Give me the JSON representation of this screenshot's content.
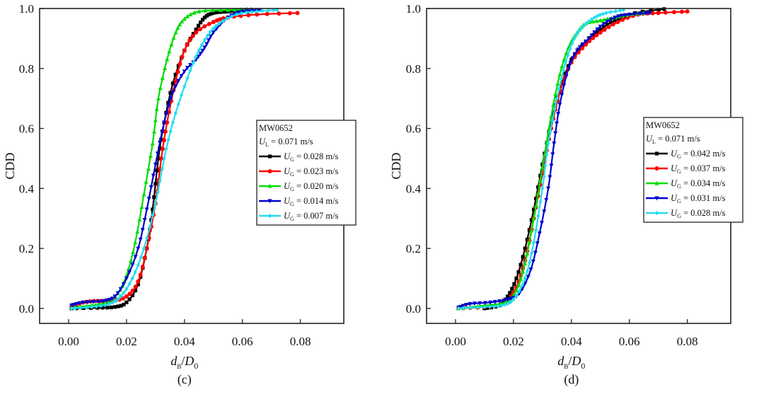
{
  "chart_data": [
    {
      "type": "line",
      "panel_label": "(c)",
      "xlabel": "d_B/D_0",
      "ylabel": "CDD",
      "xlim": [
        -0.01,
        0.095
      ],
      "ylim": [
        -0.05,
        1.0
      ],
      "xticks": [
        0.0,
        0.02,
        0.04,
        0.06,
        0.08
      ],
      "xtick_labels": [
        "0.00",
        "0.02",
        "0.04",
        "0.06",
        "0.08"
      ],
      "yticks": [
        0.0,
        0.2,
        0.4,
        0.6,
        0.8,
        1.0
      ],
      "ytick_labels": [
        "0.0",
        "0.2",
        "0.4",
        "0.6",
        "0.8",
        "1.0"
      ],
      "grid": false,
      "legend": {
        "placement": "center-right",
        "header_lines": [
          "MW0652",
          "U_L = 0.071 m/s"
        ],
        "header_line1": "MW0652",
        "header_var": "U",
        "header_sub": "L",
        "header_rest": " = 0.071 m/s"
      },
      "series": [
        {
          "name": "U_G = 0.028 m/s",
          "var": "U",
          "sub": "G",
          "label_rest": " = 0.028 m/s",
          "color": "#000000",
          "marker": "square",
          "x": [
            0.001,
            0.01,
            0.016,
            0.02,
            0.024,
            0.027,
            0.029,
            0.031,
            0.033,
            0.036,
            0.04,
            0.044,
            0.047,
            0.05,
            0.055,
            0.06
          ],
          "y": [
            0.0,
            0.002,
            0.005,
            0.02,
            0.08,
            0.2,
            0.33,
            0.5,
            0.62,
            0.75,
            0.86,
            0.93,
            0.97,
            0.985,
            0.99,
            0.995
          ]
        },
        {
          "name": "U_G = 0.023 m/s",
          "var": "U",
          "sub": "G",
          "label_rest": " = 0.023 m/s",
          "color": "#ff0000",
          "marker": "circle",
          "x": [
            0.001,
            0.005,
            0.01,
            0.015,
            0.02,
            0.024,
            0.027,
            0.03,
            0.032,
            0.034,
            0.037,
            0.04,
            0.044,
            0.05,
            0.055,
            0.065,
            0.079
          ],
          "y": [
            0.005,
            0.02,
            0.025,
            0.025,
            0.04,
            0.09,
            0.2,
            0.35,
            0.5,
            0.62,
            0.76,
            0.86,
            0.92,
            0.955,
            0.97,
            0.98,
            0.985
          ]
        },
        {
          "name": "U_G = 0.020 m/s",
          "var": "U",
          "sub": "G",
          "label_rest": " = 0.020 m/s",
          "color": "#00dd00",
          "marker": "triangle-up",
          "x": [
            0.001,
            0.008,
            0.013,
            0.017,
            0.02,
            0.023,
            0.026,
            0.029,
            0.031,
            0.034,
            0.037,
            0.04,
            0.045,
            0.055,
            0.063
          ],
          "y": [
            0.003,
            0.01,
            0.02,
            0.05,
            0.11,
            0.22,
            0.38,
            0.55,
            0.7,
            0.83,
            0.92,
            0.965,
            0.99,
            0.995,
            0.998
          ]
        },
        {
          "name": "U_G = 0.014 m/s",
          "var": "U",
          "sub": "G",
          "label_rest": " = 0.014 m/s",
          "color": "#0000cc",
          "marker": "triangle-down",
          "x": [
            0.001,
            0.005,
            0.012,
            0.016,
            0.02,
            0.024,
            0.027,
            0.03,
            0.033,
            0.036,
            0.04,
            0.044,
            0.047,
            0.05,
            0.055,
            0.06,
            0.066
          ],
          "y": [
            0.01,
            0.02,
            0.025,
            0.04,
            0.1,
            0.2,
            0.33,
            0.48,
            0.62,
            0.72,
            0.79,
            0.83,
            0.87,
            0.92,
            0.97,
            0.99,
            0.995
          ]
        },
        {
          "name": "U_G = 0.007 m/s",
          "var": "U",
          "sub": "G",
          "label_rest": " = 0.007 m/s",
          "color": "#22ddee",
          "marker": "diamond",
          "x": [
            0.001,
            0.008,
            0.014,
            0.018,
            0.022,
            0.026,
            0.03,
            0.033,
            0.036,
            0.04,
            0.044,
            0.048,
            0.052,
            0.058,
            0.065,
            0.072
          ],
          "y": [
            0.0,
            0.005,
            0.015,
            0.04,
            0.1,
            0.2,
            0.35,
            0.5,
            0.62,
            0.74,
            0.84,
            0.91,
            0.95,
            0.98,
            0.99,
            0.995
          ]
        }
      ]
    },
    {
      "type": "line",
      "panel_label": "(d)",
      "xlabel": "d_B/D_0",
      "ylabel": "CDD",
      "xlim": [
        -0.01,
        0.095
      ],
      "ylim": [
        -0.05,
        1.0
      ],
      "xticks": [
        0.0,
        0.02,
        0.04,
        0.06,
        0.08
      ],
      "xtick_labels": [
        "0.00",
        "0.02",
        "0.04",
        "0.06",
        "0.08"
      ],
      "yticks": [
        0.0,
        0.2,
        0.4,
        0.6,
        0.8,
        1.0
      ],
      "ytick_labels": [
        "0.0",
        "0.2",
        "0.4",
        "0.6",
        "0.8",
        "1.0"
      ],
      "grid": false,
      "legend": {
        "placement": "center-right",
        "header_lines": [
          "MW0652",
          "U_L = 0.071 m/s"
        ],
        "header_line1": "MW0652",
        "header_var": "U",
        "header_sub": "L",
        "header_rest": " = 0.071 m/s"
      },
      "series": [
        {
          "name": "U_G = 0.042 m/s",
          "var": "U",
          "sub": "G",
          "label_rest": " = 0.042 m/s",
          "color": "#000000",
          "marker": "square",
          "x": [
            0.01,
            0.015,
            0.018,
            0.021,
            0.024,
            0.027,
            0.03,
            0.033,
            0.036,
            0.04,
            0.045,
            0.05,
            0.055,
            0.062,
            0.072
          ],
          "y": [
            0.0,
            0.01,
            0.04,
            0.1,
            0.2,
            0.33,
            0.48,
            0.62,
            0.73,
            0.83,
            0.89,
            0.93,
            0.96,
            0.985,
            0.998
          ]
        },
        {
          "name": "U_G = 0.037 m/s",
          "var": "U",
          "sub": "G",
          "label_rest": " = 0.037 m/s",
          "color": "#ff0000",
          "marker": "circle",
          "x": [
            0.001,
            0.01,
            0.017,
            0.021,
            0.024,
            0.027,
            0.03,
            0.033,
            0.036,
            0.04,
            0.045,
            0.05,
            0.056,
            0.063,
            0.07,
            0.08
          ],
          "y": [
            0.0,
            0.005,
            0.02,
            0.07,
            0.16,
            0.3,
            0.45,
            0.6,
            0.72,
            0.82,
            0.88,
            0.92,
            0.955,
            0.98,
            0.985,
            0.99
          ]
        },
        {
          "name": "U_G = 0.034 m/s",
          "var": "U",
          "sub": "G",
          "label_rest": " = 0.034 m/s",
          "color": "#00dd00",
          "marker": "triangle-up",
          "x": [
            0.001,
            0.01,
            0.017,
            0.021,
            0.024,
            0.027,
            0.03,
            0.033,
            0.036,
            0.039,
            0.042,
            0.045,
            0.05,
            0.055,
            0.06,
            0.065
          ],
          "y": [
            0.0,
            0.01,
            0.02,
            0.06,
            0.15,
            0.3,
            0.47,
            0.64,
            0.78,
            0.87,
            0.92,
            0.95,
            0.96,
            0.97,
            0.98,
            0.985
          ]
        },
        {
          "name": "U_G = 0.031 m/s",
          "var": "U",
          "sub": "G",
          "label_rest": " = 0.031 m/s",
          "color": "#0000cc",
          "marker": "triangle-down",
          "x": [
            0.001,
            0.005,
            0.012,
            0.018,
            0.022,
            0.026,
            0.029,
            0.032,
            0.034,
            0.036,
            0.039,
            0.042,
            0.046,
            0.05,
            0.055,
            0.06,
            0.067
          ],
          "y": [
            0.003,
            0.015,
            0.02,
            0.03,
            0.05,
            0.13,
            0.25,
            0.4,
            0.55,
            0.68,
            0.8,
            0.86,
            0.9,
            0.94,
            0.97,
            0.98,
            0.985
          ]
        },
        {
          "name": "U_G = 0.028 m/s",
          "var": "U",
          "sub": "G",
          "label_rest": " = 0.028 m/s",
          "color": "#22ddee",
          "marker": "diamond",
          "x": [
            0.001,
            0.01,
            0.016,
            0.02,
            0.024,
            0.027,
            0.03,
            0.032,
            0.035,
            0.038,
            0.041,
            0.044,
            0.048,
            0.052,
            0.058
          ],
          "y": [
            0.0,
            0.005,
            0.01,
            0.03,
            0.1,
            0.22,
            0.4,
            0.55,
            0.7,
            0.82,
            0.9,
            0.94,
            0.97,
            0.985,
            0.995
          ]
        }
      ]
    }
  ]
}
